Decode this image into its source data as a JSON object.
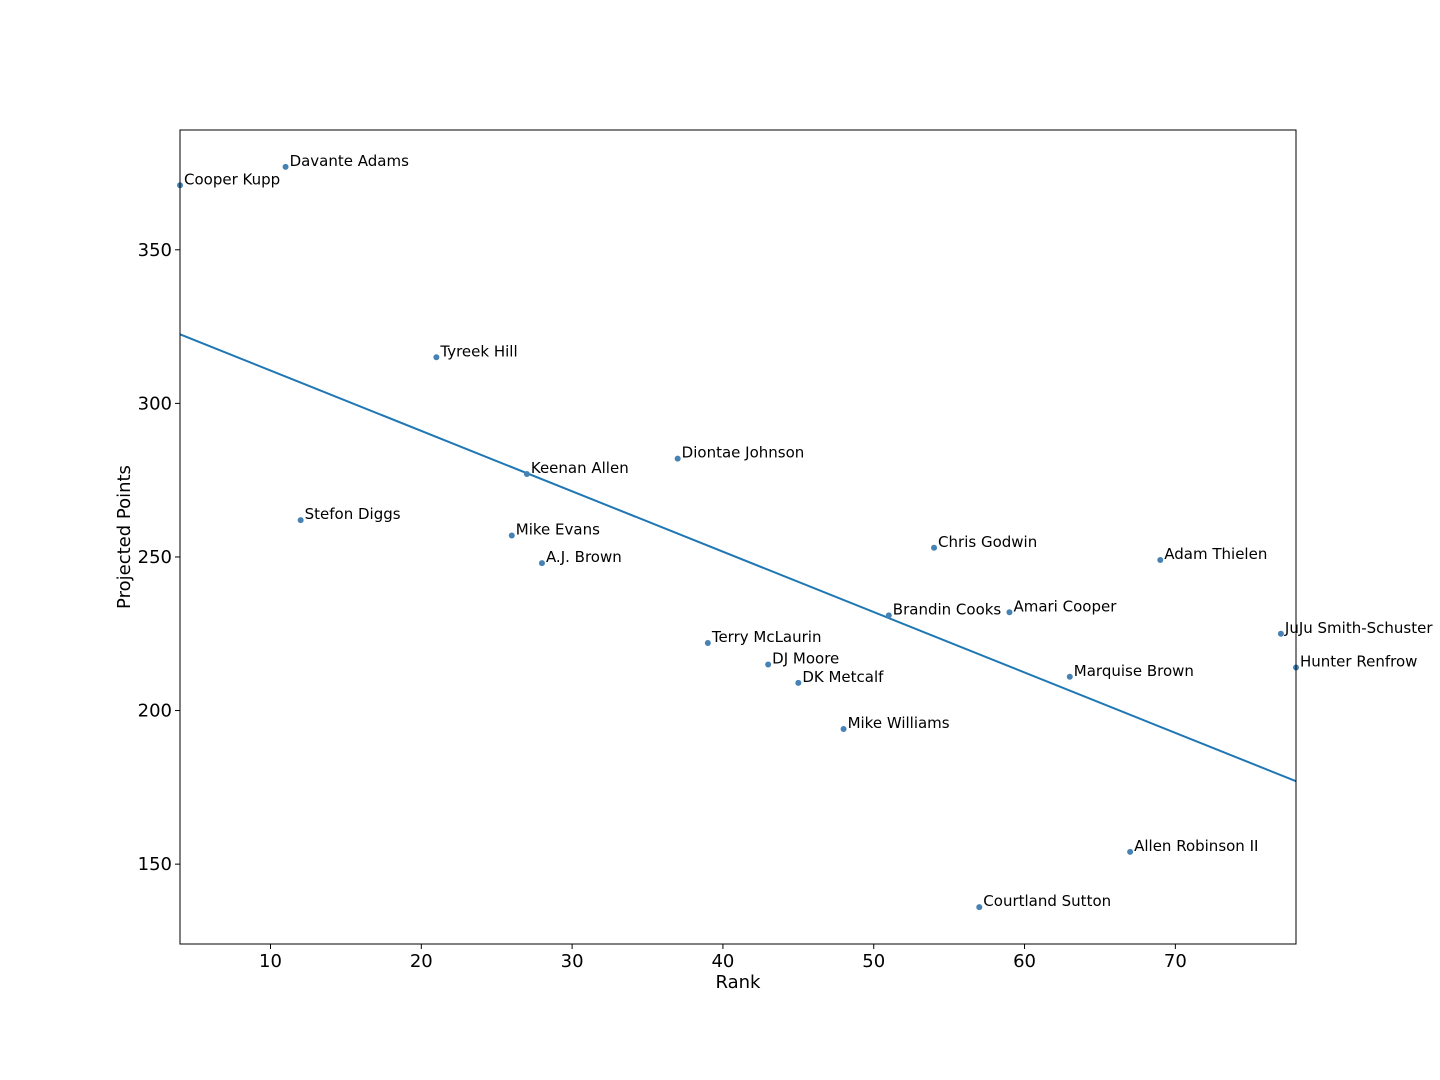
{
  "chart_data": {
    "type": "scatter",
    "title": "",
    "xlabel": "Rank",
    "ylabel": "Projected Points",
    "xlim": [
      4,
      78
    ],
    "ylim": [
      124,
      389
    ],
    "xticks": [
      10,
      20,
      30,
      40,
      50,
      60,
      70
    ],
    "yticks": [
      150,
      200,
      250,
      300,
      350
    ],
    "grid": false,
    "point_color": "#4682b4",
    "line_color": "#1f77b4",
    "points": [
      {
        "name": "Cooper Kupp",
        "x": 4,
        "y": 371
      },
      {
        "name": "Davante Adams",
        "x": 11,
        "y": 377
      },
      {
        "name": "Stefon Diggs",
        "x": 12,
        "y": 262
      },
      {
        "name": "Tyreek Hill",
        "x": 21,
        "y": 315
      },
      {
        "name": "Mike Evans",
        "x": 26,
        "y": 257
      },
      {
        "name": "Keenan Allen",
        "x": 27,
        "y": 277
      },
      {
        "name": "A.J. Brown",
        "x": 28,
        "y": 248
      },
      {
        "name": "Diontae Johnson",
        "x": 37,
        "y": 282
      },
      {
        "name": "Terry McLaurin",
        "x": 39,
        "y": 222
      },
      {
        "name": "DJ Moore",
        "x": 43,
        "y": 215
      },
      {
        "name": "DK Metcalf",
        "x": 45,
        "y": 209
      },
      {
        "name": "Mike Williams",
        "x": 48,
        "y": 194
      },
      {
        "name": "Brandin Cooks",
        "x": 51,
        "y": 231
      },
      {
        "name": "Chris Godwin",
        "x": 54,
        "y": 253
      },
      {
        "name": "Courtland Sutton",
        "x": 57,
        "y": 136
      },
      {
        "name": "Amari Cooper",
        "x": 59,
        "y": 232
      },
      {
        "name": "Marquise Brown",
        "x": 63,
        "y": 211
      },
      {
        "name": "Allen Robinson II",
        "x": 67,
        "y": 154
      },
      {
        "name": "Adam Thielen",
        "x": 69,
        "y": 249
      },
      {
        "name": "JuJu Smith-Schuster",
        "x": 77,
        "y": 225
      },
      {
        "name": "Hunter Renfrow",
        "x": 78,
        "y": 214
      }
    ],
    "trend_line": {
      "x": [
        4,
        78
      ],
      "y": [
        322.5,
        177
      ]
    }
  }
}
